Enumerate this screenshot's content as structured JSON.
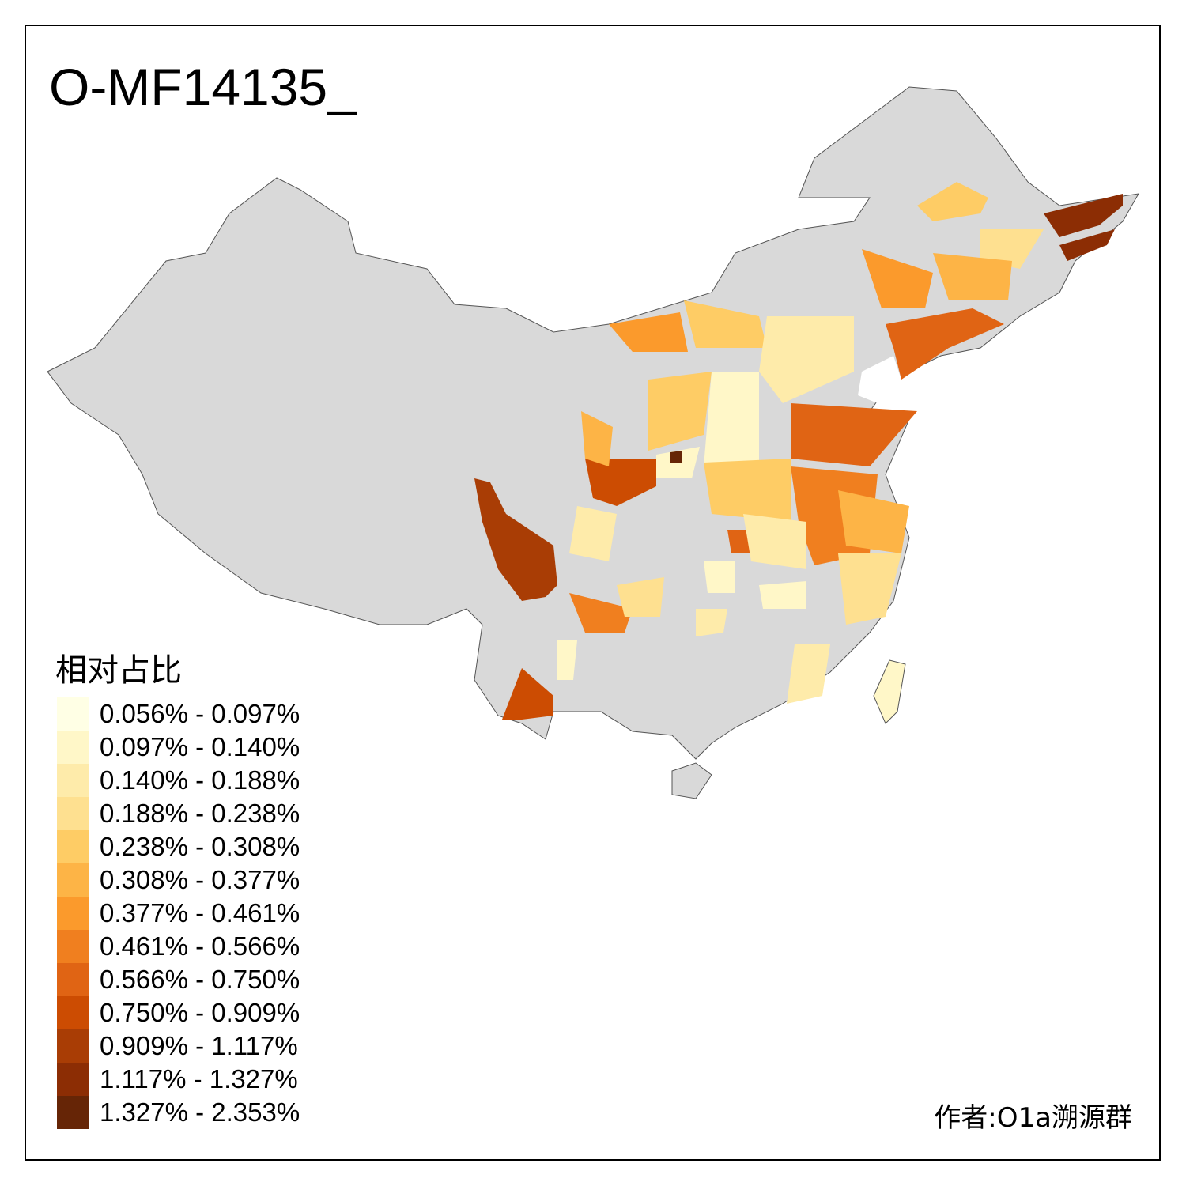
{
  "title": "O-MF14135_",
  "legend": {
    "title": "相对占比",
    "items": [
      {
        "label": "0.056% - 0.097%",
        "color": "#FFFFE5"
      },
      {
        "label": "0.097% - 0.140%",
        "color": "#FFF7C8"
      },
      {
        "label": "0.140% - 0.188%",
        "color": "#FEEBAA"
      },
      {
        "label": "0.188% - 0.238%",
        "color": "#FEE090"
      },
      {
        "label": "0.238% - 0.308%",
        "color": "#FECC65"
      },
      {
        "label": "0.308% - 0.377%",
        "color": "#FDB446"
      },
      {
        "label": "0.377% - 0.461%",
        "color": "#FB9A2C"
      },
      {
        "label": "0.461% - 0.566%",
        "color": "#F07F1F"
      },
      {
        "label": "0.566% - 0.750%",
        "color": "#E06414"
      },
      {
        "label": "0.750% - 0.909%",
        "color": "#CC4C02"
      },
      {
        "label": "0.909% - 1.117%",
        "color": "#A93D05"
      },
      {
        "label": "1.117% - 1.327%",
        "color": "#8C2D04"
      },
      {
        "label": "1.327% - 2.353%",
        "color": "#662506"
      }
    ]
  },
  "author": "作者:O1a溯源群",
  "no_data_color": "#D9D9D9"
}
